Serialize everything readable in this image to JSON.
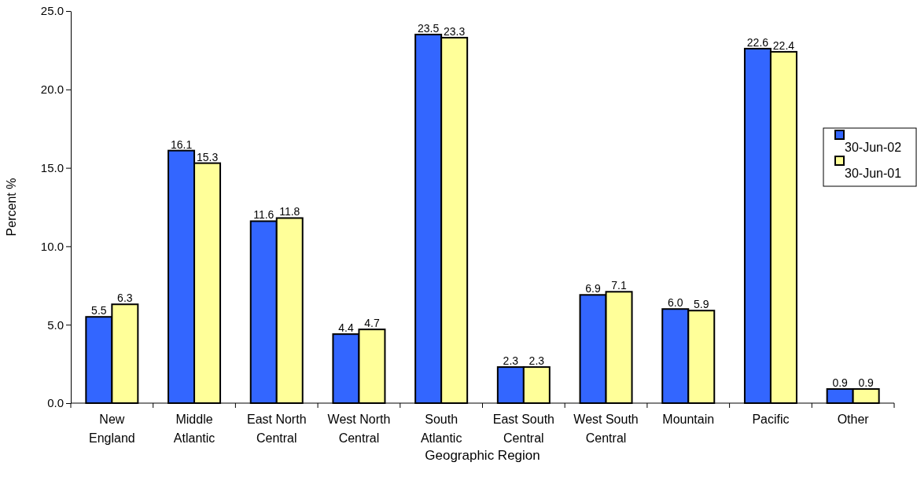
{
  "chart_data": {
    "type": "bar",
    "xlabel": "Geographic Region",
    "ylabel": "Percent %",
    "categories": [
      "New England",
      "Middle Atlantic",
      "East North Central",
      "West North Central",
      "South Atlantic",
      "East South Central",
      "West South Central",
      "Mountain",
      "Pacific",
      "Other"
    ],
    "series": [
      {
        "name": "30-Jun-02",
        "color": "#3366ff",
        "values": [
          5.5,
          16.1,
          11.6,
          4.4,
          23.5,
          2.3,
          6.9,
          6.0,
          22.6,
          0.9
        ],
        "value_labels": [
          "5.5",
          "16.1",
          "11.6",
          "4.4",
          "23.5",
          "2.3",
          "6.9",
          "6.0",
          "22.6",
          "0.9"
        ]
      },
      {
        "name": "30-Jun-01",
        "color": "#ffff99",
        "values": [
          6.3,
          15.3,
          11.8,
          4.7,
          23.3,
          2.3,
          7.1,
          5.9,
          22.4,
          0.9
        ],
        "value_labels": [
          "6.3",
          "15.3",
          "11.8",
          "4.7",
          "23.3",
          "2.3",
          "7.1",
          "5.9",
          "22.4",
          "0.9"
        ]
      }
    ],
    "ylim": [
      0,
      25
    ],
    "yticks": [
      {
        "value": 0,
        "label": "0.0"
      },
      {
        "value": 5,
        "label": "5.0"
      },
      {
        "value": 10,
        "label": "10.0"
      },
      {
        "value": 15,
        "label": "15.0"
      },
      {
        "value": 20,
        "label": "20.0"
      },
      {
        "value": 25,
        "label": "25.0"
      }
    ],
    "grid": false,
    "legend": "right"
  }
}
